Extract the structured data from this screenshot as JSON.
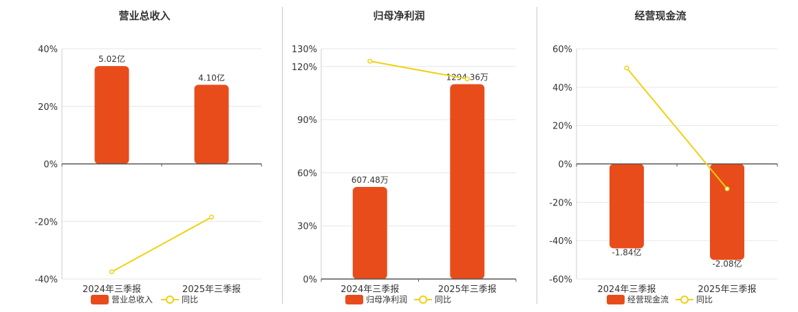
{
  "chart_data": [
    {
      "type": "bar+line",
      "title": "营业总收入",
      "categories": [
        "2024年三季报",
        "2025年三季报"
      ],
      "y_ticks": [
        "40%",
        "20%",
        "0%",
        "-20%",
        "-40%"
      ],
      "ylim": [
        -40,
        40
      ],
      "series": [
        {
          "name": "营业总收入",
          "kind": "bar",
          "color": "#e84c1b",
          "values_pct_axis": [
            34,
            27.5
          ],
          "labels": [
            "5.02亿",
            "4.10亿"
          ]
        },
        {
          "name": "同比",
          "kind": "line",
          "color": "#f0d010",
          "values": [
            -37.5,
            -18.5
          ]
        }
      ],
      "legend_position": "bottom"
    },
    {
      "type": "bar+line",
      "title": "归母净利润",
      "categories": [
        "2024年三季报",
        "2025年三季报"
      ],
      "y_ticks": [
        "130%",
        "120%",
        "90%",
        "60%",
        "30%",
        "0%"
      ],
      "ylim": [
        0,
        130
      ],
      "series": [
        {
          "name": "归母净利润",
          "kind": "bar",
          "color": "#e84c1b",
          "values_pct_axis": [
            52,
            110
          ],
          "labels": [
            "607.48万",
            "1294.36万"
          ]
        },
        {
          "name": "同比",
          "kind": "line",
          "color": "#f0d010",
          "values": [
            123,
            113
          ]
        }
      ],
      "legend_position": "bottom"
    },
    {
      "type": "bar+line",
      "title": "经营现金流",
      "categories": [
        "2024年三季报",
        "2025年三季报"
      ],
      "y_ticks": [
        "60%",
        "40%",
        "20%",
        "0%",
        "-20%",
        "-40%",
        "-60%"
      ],
      "ylim": [
        -60,
        60
      ],
      "series": [
        {
          "name": "经营现金流",
          "kind": "bar",
          "color": "#e84c1b",
          "values_pct_axis": [
            -44,
            -50
          ],
          "labels": [
            "-1.84亿",
            "-2.08亿"
          ]
        },
        {
          "name": "同比",
          "kind": "line",
          "color": "#f0d010",
          "values": [
            50,
            -13
          ]
        }
      ],
      "legend_position": "bottom"
    }
  ]
}
